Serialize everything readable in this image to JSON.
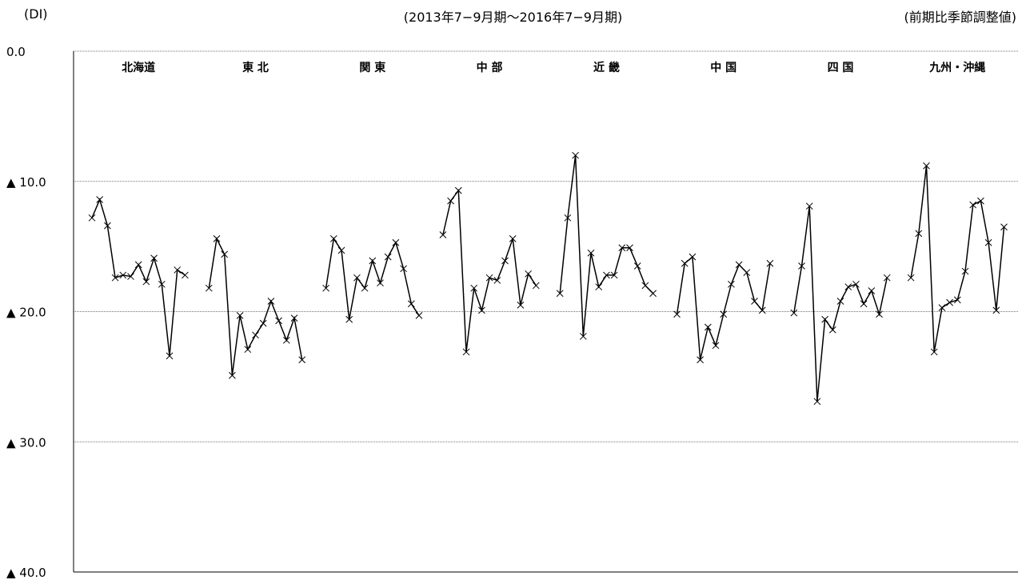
{
  "header": {
    "unit_label": "(DI)",
    "subtitle": "(2013年7−9月期〜2016年7−9月期)",
    "note": "(前期比季節調整値)"
  },
  "chart_data": {
    "type": "line",
    "title": "",
    "subtitle": "(2013年7−9月期〜2016年7−9月期)",
    "ylabel": "(DI)",
    "note": "(前期比季節調整値)",
    "ylim": [
      -40,
      0
    ],
    "y_inverted": true,
    "yticks": [
      {
        "value": 0,
        "label": "0.0"
      },
      {
        "value": -10,
        "label": "▲ 10.0"
      },
      {
        "value": -20,
        "label": "▲ 20.0"
      },
      {
        "value": -30,
        "label": "▲ 30.0"
      },
      {
        "value": -40,
        "label": "▲ 40.0"
      }
    ],
    "grid": true,
    "marker": "x",
    "line_color": "#000000",
    "period_range": "2013年7−9月期〜2016年7−9月期",
    "regions": [
      {
        "name": "北海道",
        "values": [
          -12.8,
          -11.4,
          -13.4,
          -17.4,
          -17.2,
          -17.3,
          -16.4,
          -17.7,
          -15.9,
          -17.9,
          -23.4,
          -16.8,
          -17.2
        ]
      },
      {
        "name": "東 北",
        "values": [
          -18.2,
          -14.4,
          -15.6,
          -24.9,
          -20.3,
          -22.9,
          -21.8,
          -20.9,
          -19.2,
          -20.7,
          -22.2,
          -20.5,
          -23.7
        ]
      },
      {
        "name": "関 東",
        "values": [
          -18.2,
          -14.4,
          -15.3,
          -20.6,
          -17.4,
          -18.2,
          -16.1,
          -17.8,
          -15.8,
          -14.7,
          -16.7,
          -19.4,
          -20.3
        ]
      },
      {
        "name": "中 部",
        "values": [
          -14.1,
          -11.5,
          -10.7,
          -23.1,
          -18.2,
          -19.9,
          -17.4,
          -17.6,
          -16.1,
          -14.4,
          -19.5,
          -17.1,
          -18.0
        ]
      },
      {
        "name": "近 畿",
        "values": [
          -18.6,
          -12.8,
          -8.0,
          -21.9,
          -15.5,
          -18.1,
          -17.2,
          -17.2,
          -15.1,
          -15.1,
          -16.5,
          -18.0,
          -18.6
        ]
      },
      {
        "name": "中 国",
        "values": [
          -20.2,
          -16.3,
          -15.8,
          -23.7,
          -21.2,
          -22.6,
          -20.2,
          -17.9,
          -16.4,
          -17.0,
          -19.2,
          -19.9,
          -16.3
        ]
      },
      {
        "name": "四 国",
        "values": [
          -20.1,
          -16.5,
          -11.9,
          -26.9,
          -20.6,
          -21.4,
          -19.2,
          -18.1,
          -17.9,
          -19.4,
          -18.4,
          -20.2,
          -17.4
        ]
      },
      {
        "name": "九州・沖縄",
        "values": [
          -17.4,
          -14.0,
          -8.8,
          -23.1,
          -19.7,
          -19.3,
          -19.1,
          -16.9,
          -11.8,
          -11.5,
          -14.7,
          -19.9,
          -13.5
        ]
      }
    ]
  }
}
